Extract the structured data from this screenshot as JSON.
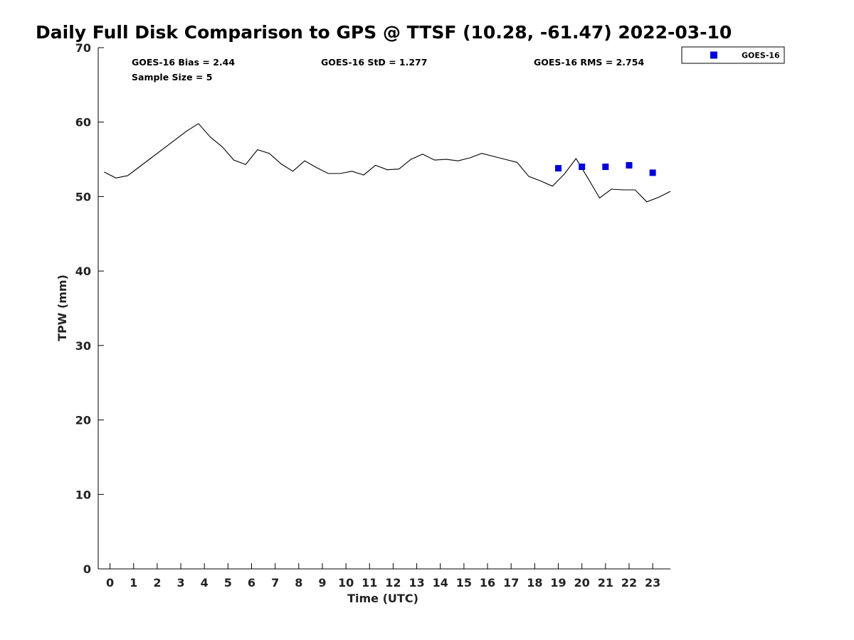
{
  "chart_data": {
    "type": "line",
    "title": "Daily Full Disk Comparison to GPS @ TTSF (10.28, -61.47) 2022-03-10",
    "xlabel": "Time (UTC)",
    "ylabel": "TPW (mm)",
    "xlim": [
      -0.5,
      23.75
    ],
    "ylim": [
      0,
      70
    ],
    "xticks": [
      "0",
      "1",
      "2",
      "3",
      "4",
      "5",
      "6",
      "7",
      "8",
      "9",
      "10",
      "11",
      "12",
      "13",
      "14",
      "15",
      "16",
      "17",
      "18",
      "19",
      "20",
      "21",
      "22",
      "23"
    ],
    "yticks": [
      "0",
      "10",
      "20",
      "30",
      "40",
      "50",
      "60",
      "70"
    ],
    "stats": {
      "bias": "GOES-16 Bias = 2.44",
      "std": "GOES-16 StD = 1.277",
      "rms": "GOES-16 RMS = 2.754",
      "sample": "Sample Size = 5"
    },
    "legend": {
      "label": "GOES-16",
      "position": "top-right outside"
    },
    "series": [
      {
        "name": "GPS",
        "kind": "line",
        "color": "#000000",
        "x": [
          -0.25,
          0.25,
          0.75,
          1.25,
          1.75,
          2.25,
          2.75,
          3.25,
          3.75,
          4.25,
          4.75,
          5.25,
          5.75,
          6.25,
          6.75,
          7.25,
          7.75,
          8.25,
          8.75,
          9.25,
          9.75,
          10.25,
          10.75,
          11.25,
          11.75,
          12.25,
          12.75,
          13.25,
          13.75,
          14.25,
          14.75,
          15.25,
          15.75,
          16.25,
          16.75,
          17.25,
          17.75,
          18.25,
          18.75,
          19.25,
          19.75,
          20.25,
          20.75,
          21.25,
          21.75,
          22.25,
          22.75,
          23.25,
          23.75
        ],
        "values": [
          53.3,
          52.5,
          52.8,
          54.0,
          55.2,
          56.4,
          57.6,
          58.8,
          59.8,
          58.0,
          56.7,
          54.9,
          54.3,
          56.3,
          55.8,
          54.4,
          53.4,
          54.8,
          53.9,
          53.1,
          53.1,
          53.4,
          52.9,
          54.2,
          53.6,
          53.7,
          55.0,
          55.7,
          54.9,
          55.0,
          54.8,
          55.2,
          55.8,
          55.4,
          55.0,
          54.6,
          52.7,
          52.1,
          51.4,
          53.0,
          55.1,
          52.5,
          49.8,
          51.0,
          50.9,
          50.9,
          49.3,
          49.9,
          50.7
        ]
      },
      {
        "name": "GOES-16",
        "kind": "scatter",
        "color": "#0000dd",
        "x": [
          19,
          20,
          21,
          22,
          23
        ],
        "values": [
          53.8,
          54.0,
          54.0,
          54.2,
          53.2
        ]
      }
    ]
  }
}
